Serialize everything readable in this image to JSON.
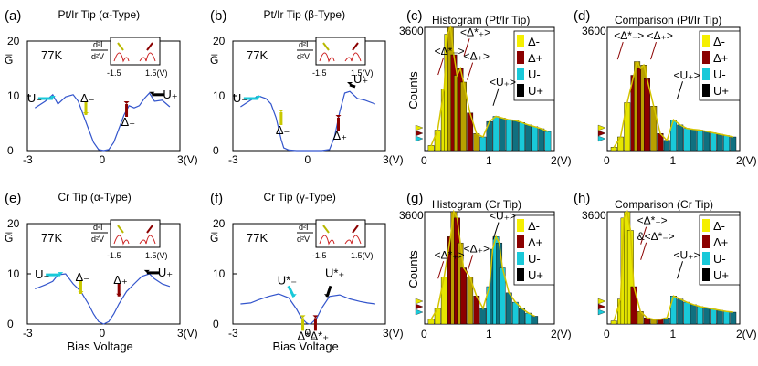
{
  "chart_data": [
    {
      "panel": "(a)",
      "type": "line",
      "title": "Pt/Ir Tip (α-Type)",
      "temperature": "77K",
      "ylabel": "G̅",
      "xlabel": "",
      "xticks": [
        "-3",
        "0",
        "3(V)"
      ],
      "yticks": [
        "0",
        "10",
        "20"
      ],
      "xlim": [
        -3,
        3
      ],
      "ylim": [
        0,
        20
      ],
      "inset": {
        "formula_num": "d²I",
        "formula_den": "d²V",
        "ticks": [
          "-1.5",
          "1.5(V)"
        ]
      },
      "annotations": [
        {
          "label": "U₋",
          "color": "cyan"
        },
        {
          "label": "Δ₋",
          "color": "yellow"
        },
        {
          "label": "Δ₊",
          "color": "darkred"
        },
        {
          "label": "U₊",
          "color": "black"
        }
      ],
      "series": [
        {
          "name": "Ḡ",
          "x": [
            -2.7,
            -2.3,
            -2.0,
            -1.8,
            -1.5,
            -1.2,
            -1.0,
            -0.8,
            -0.6,
            -0.4,
            -0.2,
            0,
            0.2,
            0.4,
            0.6,
            0.8,
            1.0,
            1.2,
            1.4,
            1.6,
            1.8,
            2.0,
            2.3,
            2.6
          ],
          "y": [
            7.8,
            9.0,
            10.2,
            8.5,
            9.8,
            10.2,
            9.0,
            6.5,
            4.0,
            1.5,
            0.2,
            0,
            0.2,
            1.5,
            4.0,
            6.5,
            8.2,
            7.8,
            8.2,
            9.5,
            10.5,
            9.0,
            9.2,
            8.0
          ]
        }
      ]
    },
    {
      "panel": "(b)",
      "type": "line",
      "title": "Pt/Ir Tip  (β-Type)",
      "temperature": "77K",
      "ylabel": "G̅",
      "xticks": [
        "-3",
        "0",
        "3(V)"
      ],
      "yticks": [
        "0",
        "10",
        "20"
      ],
      "xlim": [
        -3,
        3
      ],
      "ylim": [
        0,
        20
      ],
      "inset": {
        "formula_num": "d²I",
        "formula_den": "d²V",
        "ticks": [
          "-1.5",
          "1.5(V)"
        ]
      },
      "annotations": [
        {
          "label": "U₋",
          "color": "cyan"
        },
        {
          "label": "Δ₋",
          "color": "yellow"
        },
        {
          "label": "Δ₊",
          "color": "darkred"
        },
        {
          "label": "U₊",
          "color": "black"
        }
      ],
      "series": [
        {
          "name": "Ḡ",
          "x": [
            -2.7,
            -2.3,
            -2.0,
            -1.7,
            -1.5,
            -1.3,
            -1.1,
            -1.0,
            -0.8,
            -0.5,
            0,
            0.5,
            0.8,
            1.0,
            1.2,
            1.4,
            1.6,
            1.9,
            2.2,
            2.6
          ],
          "y": [
            8.0,
            9.2,
            10.0,
            9.5,
            8.5,
            6.0,
            2.0,
            0.5,
            0.1,
            0,
            0,
            0,
            0.2,
            2.5,
            7.0,
            10.5,
            10.8,
            9.5,
            9.2,
            8.5
          ]
        }
      ]
    },
    {
      "panel": "(c)",
      "type": "bar",
      "title": "Histogram (Pt/Ir Tip)",
      "ylabel": "Counts",
      "xticks": [
        "0",
        "1",
        "2(V)"
      ],
      "ytick_top": "3600",
      "xlim": [
        0,
        2
      ],
      "ylim": [
        0,
        3600
      ],
      "legend": [
        "Δ-",
        "Δ+",
        "U-",
        "U+"
      ],
      "annotations": [
        "<Δ*₊>",
        "<Δ₊>",
        "<Δ*₋>",
        "<U₊>"
      ],
      "series": [
        {
          "name": "counts",
          "x": [
            0.1,
            0.2,
            0.3,
            0.35,
            0.4,
            0.45,
            0.5,
            0.55,
            0.6,
            0.7,
            0.8,
            0.9,
            1.0,
            1.1,
            1.2,
            1.3,
            1.4,
            1.5,
            1.6,
            1.7,
            1.8,
            1.9
          ],
          "y": [
            150,
            600,
            1800,
            3400,
            3600,
            2800,
            2200,
            2400,
            2000,
            1100,
            500,
            400,
            850,
            1000,
            950,
            900,
            880,
            820,
            750,
            700,
            640,
            560
          ]
        }
      ]
    },
    {
      "panel": "(d)",
      "type": "bar",
      "title": "Comparison (Pt/Ir Tip)",
      "ylabel": "",
      "xticks": [
        "0",
        "1",
        "2(V)"
      ],
      "ytick_top": "3600",
      "xlim": [
        0,
        2
      ],
      "ylim": [
        0,
        3600
      ],
      "legend": [
        "Δ-",
        "Δ+",
        "U-",
        "U+"
      ],
      "annotations": [
        "<Δ*₋>",
        "<Δ₊>",
        "<U₊>"
      ],
      "series": [
        {
          "name": "counts",
          "x": [
            0.1,
            0.2,
            0.3,
            0.4,
            0.45,
            0.5,
            0.55,
            0.6,
            0.7,
            0.8,
            0.9,
            1.0,
            1.1,
            1.2,
            1.3,
            1.4,
            1.5,
            1.6,
            1.7,
            1.8,
            1.9
          ],
          "y": [
            100,
            400,
            1400,
            2200,
            2600,
            2400,
            2500,
            2100,
            1300,
            500,
            300,
            900,
            750,
            650,
            620,
            600,
            560,
            520,
            480,
            440,
            400
          ]
        }
      ]
    },
    {
      "panel": "(e)",
      "type": "line",
      "title": "Cr Tip (α-Type)",
      "temperature": "77K",
      "ylabel": "G̅",
      "xlabel": "Bias Voltage",
      "xticks": [
        "-3",
        "0",
        "3(V)"
      ],
      "yticks": [
        "0",
        "10",
        "20"
      ],
      "xlim": [
        -3,
        3
      ],
      "ylim": [
        0,
        20
      ],
      "inset": {
        "formula_num": "d²I",
        "formula_den": "d²V",
        "ticks": [
          "-1.5",
          "1.5(V)"
        ]
      },
      "annotations": [
        {
          "label": "U₋",
          "color": "cyan"
        },
        {
          "label": "Δ₋",
          "color": "yellow"
        },
        {
          "label": "Δ₊",
          "color": "darkred"
        },
        {
          "label": "U₊",
          "color": "black"
        }
      ],
      "series": [
        {
          "name": "Ḡ",
          "x": [
            -2.7,
            -2.3,
            -2.0,
            -1.8,
            -1.5,
            -1.2,
            -0.9,
            -0.6,
            -0.4,
            -0.2,
            0,
            0.2,
            0.4,
            0.6,
            0.9,
            1.2,
            1.5,
            1.8,
            2.0,
            2.3,
            2.6
          ],
          "y": [
            7.0,
            7.8,
            8.5,
            9.8,
            10.0,
            8.0,
            6.5,
            4.0,
            2.0,
            0.5,
            0,
            0.5,
            2.0,
            4.0,
            6.5,
            8.0,
            9.5,
            10.0,
            9.0,
            8.0,
            7.5
          ]
        }
      ]
    },
    {
      "panel": "(f)",
      "type": "line",
      "title": "Cr Tip (γ-Type)",
      "temperature": "77K",
      "ylabel": "G̅",
      "xlabel": "Bias Voltage",
      "xticks": [
        "-3",
        "0",
        "3(V)"
      ],
      "yticks": [
        "0",
        "10",
        "20"
      ],
      "xlim": [
        -3,
        3
      ],
      "ylim": [
        0,
        20
      ],
      "inset": {
        "formula_num": "d²I",
        "formula_den": "d²V",
        "ticks": [
          "-1.5",
          "1.5(V)"
        ]
      },
      "annotations": [
        {
          "label": "U*₋",
          "color": "cyan"
        },
        {
          "label": "Δ*₋",
          "color": "yellow"
        },
        {
          "label": "Δ*₊",
          "color": "darkred"
        },
        {
          "label": "U*₊",
          "color": "black"
        }
      ],
      "series": [
        {
          "name": "Ḡ",
          "x": [
            -2.7,
            -2.3,
            -2.0,
            -1.6,
            -1.2,
            -0.8,
            -0.5,
            -0.3,
            -0.1,
            0,
            0.1,
            0.3,
            0.5,
            0.8,
            1.2,
            1.6,
            2.0,
            2.3,
            2.6
          ],
          "y": [
            4.0,
            4.2,
            4.8,
            5.5,
            6.0,
            5.2,
            3.0,
            1.2,
            0.2,
            0,
            0.2,
            1.2,
            3.2,
            5.5,
            5.8,
            5.0,
            4.5,
            4.2,
            4.0
          ]
        }
      ]
    },
    {
      "panel": "(g)",
      "type": "bar",
      "title": "Histogram (Cr Tip)",
      "ylabel": "Counts",
      "xticks": [
        "0",
        "1",
        "2(V)"
      ],
      "ytick_top": "3600",
      "xlim": [
        0,
        2
      ],
      "ylim": [
        0,
        3600
      ],
      "legend": [
        "Δ-",
        "Δ+",
        "U-",
        "U+"
      ],
      "annotations": [
        "<Δ*₊>",
        "<U₊>",
        "<Δ₊>"
      ],
      "series": [
        {
          "name": "counts",
          "x": [
            0.1,
            0.2,
            0.3,
            0.4,
            0.45,
            0.5,
            0.55,
            0.6,
            0.7,
            0.8,
            0.9,
            1.0,
            1.05,
            1.1,
            1.15,
            1.2,
            1.3,
            1.4,
            1.5,
            1.6,
            1.7
          ],
          "y": [
            150,
            500,
            1500,
            2800,
            3600,
            3400,
            2600,
            1800,
            1500,
            900,
            500,
            1200,
            2400,
            2800,
            2600,
            1800,
            1000,
            700,
            500,
            350,
            250
          ]
        }
      ]
    },
    {
      "panel": "(h)",
      "type": "bar",
      "title": "Comparison (Cr Tip)",
      "ylabel": "",
      "xticks": [
        "0",
        "1",
        "2(V)"
      ],
      "ytick_top": "3600",
      "xlim": [
        0,
        2
      ],
      "ylim": [
        0,
        3600
      ],
      "legend": [
        "Δ-",
        "Δ+",
        "U-",
        "U+"
      ],
      "annotations": [
        "<Δ*₊>",
        "&<Δ*₋>",
        "<U₊>"
      ],
      "series": [
        {
          "name": "counts",
          "x": [
            0.1,
            0.2,
            0.25,
            0.3,
            0.35,
            0.4,
            0.5,
            0.6,
            0.7,
            0.8,
            0.9,
            1.0,
            1.1,
            1.2,
            1.3,
            1.4,
            1.5,
            1.6,
            1.7,
            1.8,
            1.9
          ],
          "y": [
            100,
            800,
            3400,
            3600,
            3000,
            1200,
            400,
            200,
            150,
            150,
            200,
            900,
            800,
            700,
            620,
            560,
            520,
            480,
            440,
            400,
            380
          ]
        }
      ]
    }
  ]
}
